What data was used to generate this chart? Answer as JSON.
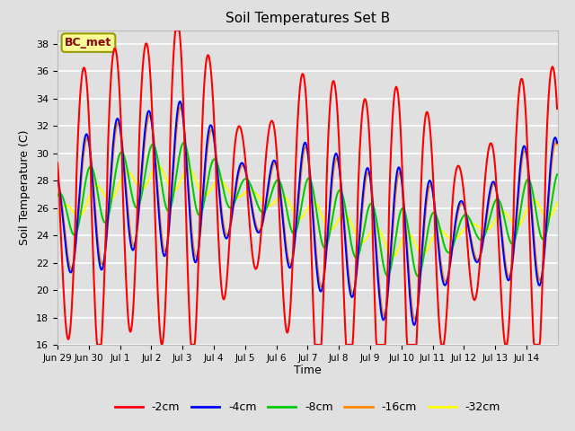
{
  "title": "Soil Temperatures Set B",
  "xlabel": "Time",
  "ylabel": "Soil Temperature (C)",
  "ylim": [
    16,
    39
  ],
  "annotation": "BC_met",
  "line_colors": {
    "-2cm": "#FF0000",
    "-4cm": "#0000FF",
    "-8cm": "#00CC00",
    "-16cm": "#FF8800",
    "-32cm": "#FFFF00"
  },
  "bg_color": "#E0E0E0",
  "grid_color": "#FFFFFF",
  "tick_labels": [
    "Jun 29",
    "Jun 30",
    "Jul 1",
    "Jul 2",
    "Jul 3",
    "Jul 4",
    "Jul 5",
    "Jul 6",
    "Jul 7",
    "Jul 8",
    "Jul 9",
    "Jul 10",
    "Jul 11",
    "Jul 12",
    "Jul 13",
    "Jul 14"
  ],
  "yticks": [
    16,
    18,
    20,
    22,
    24,
    26,
    28,
    30,
    32,
    34,
    36,
    38
  ]
}
